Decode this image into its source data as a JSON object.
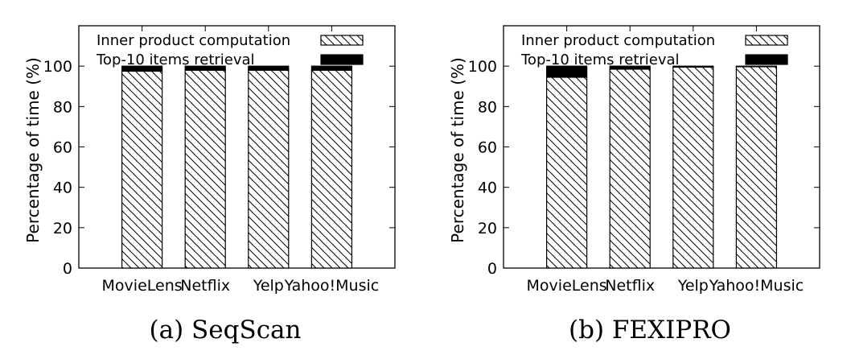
{
  "figure": {
    "legend_entries": [
      "Inner product computation",
      "Top-10 items retrieval"
    ]
  },
  "chart_data": [
    {
      "type": "bar",
      "stacked": true,
      "title": "(a) SeqScan",
      "ylabel": "Percentage of time (%)",
      "xlabel": "",
      "ylim": [
        0,
        120
      ],
      "yticks": [
        0,
        20,
        40,
        60,
        80,
        100
      ],
      "grid": false,
      "legend_position": "top",
      "categories": [
        "MovieLens",
        "Netflix",
        "Yelp",
        "Yahoo!Music"
      ],
      "series": [
        {
          "name": "Inner product computation",
          "pattern": "diagonal-hatch",
          "color": "#000000",
          "values": [
            97.5,
            98,
            98,
            98
          ]
        },
        {
          "name": "Top-10 items retrieval",
          "pattern": "solid",
          "color": "#000000",
          "values": [
            2.5,
            2,
            2,
            2
          ]
        }
      ]
    },
    {
      "type": "bar",
      "stacked": true,
      "title": "(b) FEXIPRO",
      "ylabel": "Percentage of time (%)",
      "xlabel": "",
      "ylim": [
        0,
        120
      ],
      "yticks": [
        0,
        20,
        40,
        60,
        80,
        100
      ],
      "grid": false,
      "legend_position": "top",
      "categories": [
        "MovieLens",
        "Netflix",
        "Yelp",
        "Yahoo!Music"
      ],
      "series": [
        {
          "name": "Inner product computation",
          "pattern": "diagonal-hatch",
          "color": "#000000",
          "values": [
            94.5,
            98.5,
            99.5,
            99.7
          ]
        },
        {
          "name": "Top-10 items retrieval",
          "pattern": "solid",
          "color": "#000000",
          "values": [
            5.5,
            1.5,
            0.5,
            0.3
          ]
        }
      ]
    }
  ]
}
